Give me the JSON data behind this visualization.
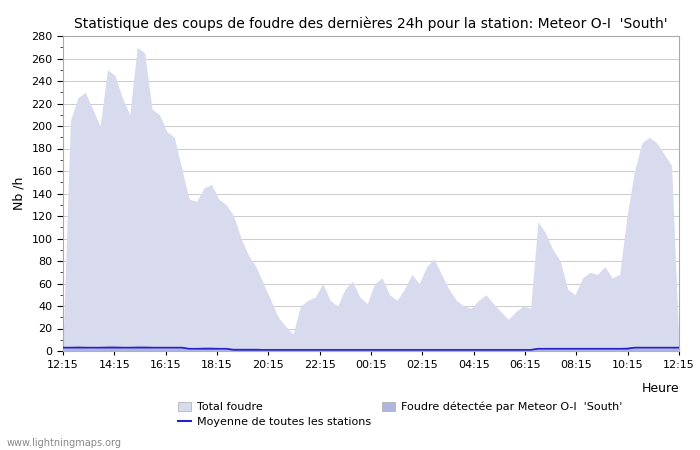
{
  "title": "Statistique des coups de foudre des dernières 24h pour la station: Meteor O-I  'South'",
  "ylabel": "Nb /h",
  "xlabel": "Heure",
  "xlabels": [
    "12:15",
    "14:15",
    "16:15",
    "18:15",
    "20:15",
    "22:15",
    "00:15",
    "02:15",
    "04:15",
    "06:15",
    "08:15",
    "10:15",
    "12:15"
  ],
  "ylim": [
    0,
    280
  ],
  "yticks": [
    0,
    20,
    40,
    60,
    80,
    100,
    120,
    140,
    160,
    180,
    200,
    220,
    240,
    260,
    280
  ],
  "bg_color": "#ffffff",
  "plot_bg_color": "#ffffff",
  "grid_color": "#cccccc",
  "total_foudre_color": "#d8daee",
  "detected_foudre_color": "#b0b4e0",
  "moyenne_color": "#2222cc",
  "watermark": "www.lightningmaps.org",
  "legend_total": "Total foudre",
  "legend_moyenne": "Moyenne de toutes les stations",
  "legend_detected": "Foudre détectée par Meteor O-I  'South'",
  "total_foudre_data": [
    5,
    205,
    225,
    230,
    215,
    200,
    250,
    245,
    225,
    210,
    270,
    265,
    215,
    210,
    195,
    190,
    162,
    135,
    133,
    145,
    148,
    135,
    130,
    120,
    100,
    85,
    75,
    60,
    45,
    30,
    22,
    15,
    40,
    45,
    48,
    60,
    45,
    40,
    55,
    62,
    48,
    42,
    60,
    65,
    50,
    45,
    55,
    68,
    60,
    75,
    82,
    68,
    55,
    45,
    40,
    38,
    45,
    50,
    42,
    35,
    28,
    35,
    40,
    38,
    115,
    105,
    90,
    80,
    55,
    50,
    65,
    70,
    68,
    75,
    65,
    68,
    120,
    160,
    185,
    190,
    185,
    175,
    165,
    3
  ],
  "detected_foudre_data": [
    3,
    4,
    5,
    4,
    4,
    4,
    5,
    5,
    4,
    4,
    5,
    5,
    4,
    4,
    4,
    4,
    4,
    3,
    3,
    4,
    4,
    3,
    3,
    3,
    3,
    3,
    3,
    2,
    2,
    2,
    2,
    1,
    2,
    2,
    2,
    2,
    2,
    2,
    2,
    2,
    2,
    2,
    2,
    2,
    2,
    2,
    2,
    2,
    2,
    2,
    2,
    2,
    2,
    2,
    2,
    2,
    2,
    2,
    2,
    2,
    2,
    2,
    2,
    2,
    3,
    3,
    3,
    3,
    3,
    3,
    3,
    3,
    3,
    3,
    3,
    3,
    4,
    4,
    4,
    4,
    4,
    4,
    4,
    3
  ],
  "moyenne_data": [
    3,
    3,
    3,
    3,
    3,
    3,
    3,
    3,
    3,
    3,
    3,
    3,
    3,
    3,
    3,
    3,
    3,
    2,
    2,
    2,
    2,
    2,
    2,
    1,
    1,
    1,
    1,
    1,
    1,
    1,
    1,
    1,
    1,
    1,
    1,
    1,
    1,
    1,
    1,
    1,
    1,
    1,
    1,
    1,
    1,
    1,
    1,
    1,
    1,
    1,
    1,
    1,
    1,
    1,
    1,
    1,
    1,
    1,
    1,
    1,
    1,
    1,
    1,
    1,
    2,
    2,
    2,
    2,
    2,
    2,
    2,
    2,
    2,
    2,
    2,
    2,
    2,
    3,
    3,
    3,
    3,
    3,
    3,
    3
  ]
}
